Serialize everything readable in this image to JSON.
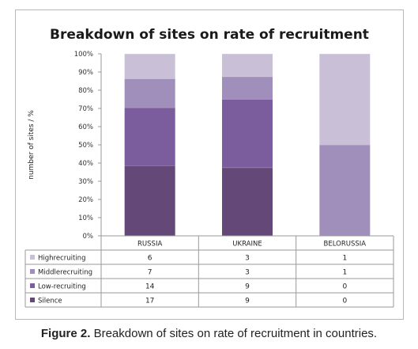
{
  "chart_data": {
    "type": "bar",
    "stacked": "percent",
    "title": "Breakdown of sites on rate of recruitment",
    "ylabel": "number of sites / %",
    "xlabel": "",
    "ylim": [
      0,
      100
    ],
    "y_ticks": [
      "0%",
      "10%",
      "20%",
      "30%",
      "40%",
      "50%",
      "60%",
      "70%",
      "80%",
      "90%",
      "100%"
    ],
    "grid": false,
    "legend": "data-table",
    "categories": [
      "RUSSIA",
      "UKRAINE",
      "BELORUSSIA"
    ],
    "series": [
      {
        "name": "Silence",
        "values": [
          17,
          9,
          0
        ],
        "color": "#644877"
      },
      {
        "name": "Low-recruiting",
        "values": [
          14,
          9,
          0
        ],
        "color": "#7b5c9c"
      },
      {
        "name": "Middlerecruiting",
        "values": [
          7,
          3,
          1
        ],
        "color": "#9f8fba"
      },
      {
        "name": "Highrecruiting",
        "values": [
          6,
          3,
          1
        ],
        "color": "#c9c0d8"
      }
    ]
  },
  "caption": {
    "label": "Figure 2.",
    "text": "Breakdown of sites on rate of recruitment in countries."
  }
}
